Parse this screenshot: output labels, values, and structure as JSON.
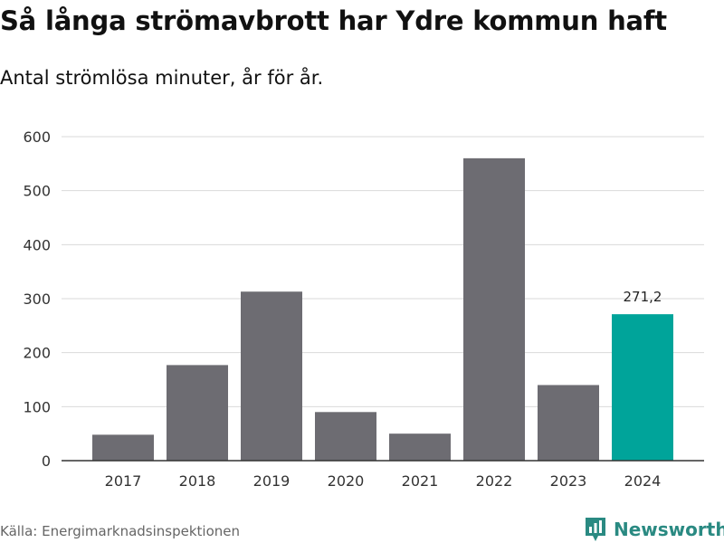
{
  "header": {
    "title": "Så långa strömavbrott har Ydre kommun haft",
    "subtitle": "Antal strömlösa minuter, år för år."
  },
  "footer": {
    "source": "Källa: Energimarknadsinspektionen",
    "brand": "Newsworthy"
  },
  "colors": {
    "bar_default": "#6d6c72",
    "bar_highlight": "#00a49a",
    "grid": "#d9d9d9",
    "axis": "#333333",
    "brand": "#2a8a82"
  },
  "icons": {
    "brand_logo": "newsworthy-logo-icon"
  },
  "chart_data": {
    "type": "bar",
    "title": "Så långa strömavbrott har Ydre kommun haft",
    "subtitle": "Antal strömlösa minuter, år för år.",
    "xlabel": "",
    "ylabel": "",
    "categories": [
      "2017",
      "2018",
      "2019",
      "2020",
      "2021",
      "2022",
      "2023",
      "2024"
    ],
    "values": [
      48,
      177,
      313,
      90,
      50,
      560,
      140,
      271.2
    ],
    "highlight_index": 7,
    "annotations": [
      {
        "index": 7,
        "text": "271,2"
      }
    ],
    "ylim": [
      0,
      600
    ],
    "yticks": [
      0,
      100,
      200,
      300,
      400,
      500,
      600
    ],
    "grid": true
  }
}
